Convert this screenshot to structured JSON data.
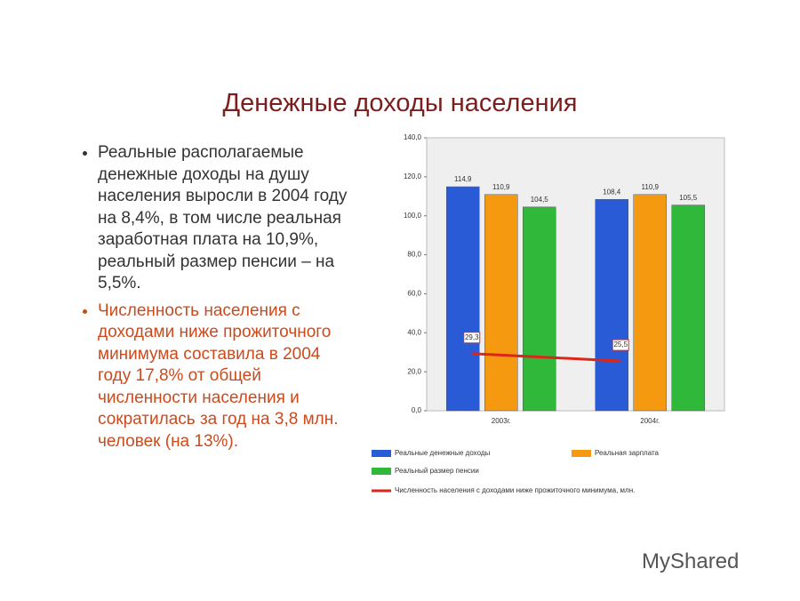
{
  "slide": {
    "title": "Денежные доходы населения",
    "bullets": [
      "Реальные располагаемые денежные доходы на душу населения выросли в 2004 году на 8,4%, в том числе реальная заработная плата на 10,9%, реальный размер пенсии – на 5,5%.",
      "Численность населения с доходами ниже прожиточного минимума составила в 2004 году 17,8% от общей численности населения и сократилась за год на 3,8 млн. человек (на 13%)."
    ],
    "watermark": "MyShared"
  },
  "chart_data": {
    "type": "bar",
    "categories": [
      "2003г.",
      "2004г."
    ],
    "series": [
      {
        "name": "Реальные денежные доходы",
        "color": "#2a5bd7",
        "values": [
          114.9,
          108.4
        ],
        "value_labels": [
          "114,9",
          "108,4"
        ]
      },
      {
        "name": "Реальная зарплата",
        "color": "#f59a10",
        "values": [
          110.9,
          110.9
        ],
        "value_labels": [
          "110,9",
          "110,9"
        ]
      },
      {
        "name": "Реальный размер пенсии",
        "color": "#2fb83a",
        "values": [
          104.5,
          105.5
        ],
        "value_labels": [
          "104,5",
          "105,5"
        ]
      },
      {
        "name": "Численность населения с доходами ниже прожиточного минимума, млн.",
        "color": "#d8281a",
        "type": "line",
        "values": [
          29.3,
          25.5
        ],
        "value_labels": [
          "29,3",
          "25,5"
        ]
      }
    ],
    "ylim": [
      0,
      140
    ],
    "yticks": [
      {
        "value": 0,
        "label": "0,0"
      },
      {
        "value": 20,
        "label": "20,0"
      },
      {
        "value": 40,
        "label": "40,0"
      },
      {
        "value": 60,
        "label": "60,0"
      },
      {
        "value": 80,
        "label": "80,0"
      },
      {
        "value": 100,
        "label": "100,0"
      },
      {
        "value": 120,
        "label": "120,0"
      },
      {
        "value": 140,
        "label": "140,0"
      }
    ]
  }
}
